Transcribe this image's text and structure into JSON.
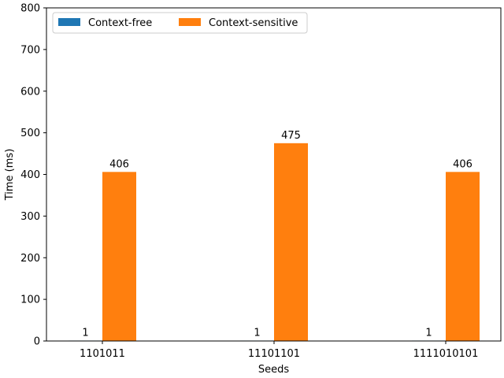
{
  "chart_data": {
    "type": "bar",
    "title": "",
    "xlabel": "Seeds",
    "ylabel": "Time (ms)",
    "categories": [
      "1101011",
      "11101101",
      "1111010101"
    ],
    "series": [
      {
        "name": "Context-free",
        "values": [
          1,
          1,
          1
        ],
        "color": "#1f77b4"
      },
      {
        "name": "Context-sensitive",
        "values": [
          406,
          475,
          406
        ],
        "color": "#ff7f0e"
      }
    ],
    "data_labels": [
      [
        "1",
        "1",
        "1"
      ],
      [
        "406",
        "475",
        "406"
      ]
    ],
    "ylim": [
      0,
      800
    ],
    "yticks": [
      0,
      100,
      200,
      300,
      400,
      500,
      600,
      700,
      800
    ],
    "grid": false,
    "legend": {
      "placement": "top-left",
      "columns": 2
    }
  }
}
